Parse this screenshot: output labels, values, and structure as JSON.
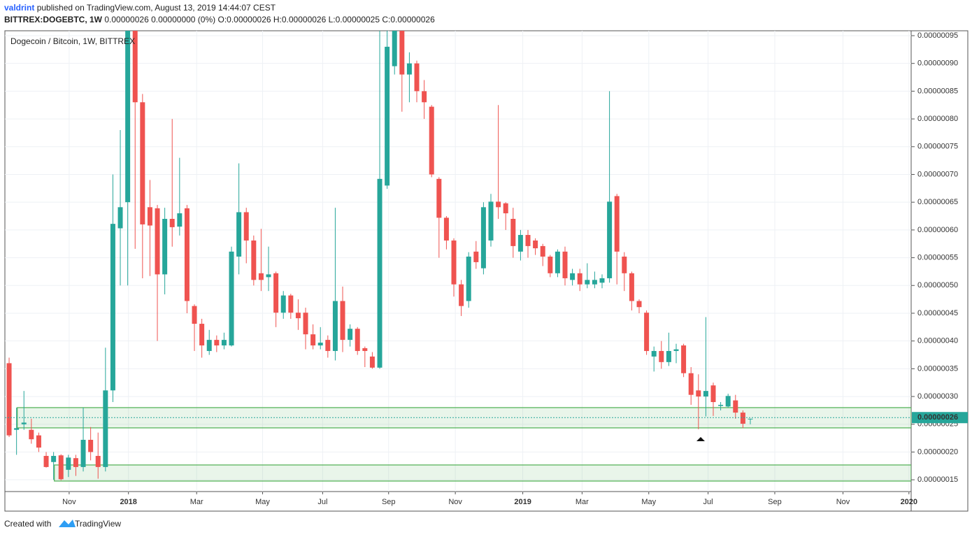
{
  "header": {
    "author": "valdrint",
    "published": "published on TradingView.com, August 13, 2019 14:44:07 CEST",
    "symbol": "BITTREX:DOGEBTC, 1W",
    "quote": "0.00000026 0.00000000 (0%) O:0.00000026 H:0.00000026 L:0.00000025 C:0.00000026"
  },
  "footer": {
    "created": "Created with",
    "brand": "TradingView"
  },
  "chart_data": {
    "type": "candlestick",
    "legend": "Dogecoin / Bitcoin, 1W, BITTREX",
    "up_color": "#26a69a",
    "down_color": "#ef5350",
    "grid": true,
    "categories": [
      null,
      null,
      null,
      null,
      null,
      null,
      null,
      null,
      null,
      null,
      null,
      null,
      null,
      null,
      null,
      null,
      null,
      null,
      null,
      null,
      null,
      null,
      null,
      null,
      null,
      null,
      null,
      null,
      null,
      null,
      null,
      null,
      null,
      null,
      null,
      null,
      null,
      null,
      null,
      null,
      null,
      null,
      null,
      null,
      null,
      null,
      null,
      null,
      null,
      null,
      null,
      null,
      null,
      null,
      null,
      null,
      null,
      null,
      null,
      null,
      null,
      null,
      null,
      null,
      null,
      null,
      null,
      null,
      null,
      null,
      null,
      null,
      null,
      null,
      null,
      null,
      null,
      null,
      null,
      null,
      null,
      null,
      null,
      null,
      null,
      null,
      null,
      null,
      null,
      null,
      null,
      null,
      null,
      null,
      null,
      null,
      null,
      null,
      null,
      null,
      null
    ],
    "open": [
      3.6e-07,
      2.4e-07,
      2.5e-07,
      2.4e-07,
      2.3e-07,
      1.93e-07,
      1.82e-07,
      1.94e-07,
      1.68e-07,
      1.89e-07,
      1.73e-07,
      2.22e-07,
      1.93e-07,
      1.73e-07,
      3.11e-07,
      6.03e-07,
      6.5e-07,
      9.7e-07,
      8.3e-07,
      6.41e-07,
      6.39e-07,
      5.2e-07,
      6.2e-07,
      6.06e-07,
      6.39e-07,
      4.63e-07,
      4.31e-07,
      3.82e-07,
      4.02e-07,
      3.92e-07,
      3.92e-07,
      5.52e-07,
      6.32e-07,
      5.81e-07,
      5.22e-07,
      5.15e-07,
      5.22e-07,
      4.51e-07,
      4.82e-07,
      4.51e-07,
      4.51e-07,
      4.12e-07,
      3.92e-07,
      4.02e-07,
      3.82e-07,
      4.72e-07,
      4.02e-07,
      4.22e-07,
      3.87e-07,
      3.72e-07,
      3.52e-07,
      6.8e-07,
      8.95e-07,
      9.7e-07,
      8.8e-07,
      9e-07,
      8.5e-07,
      8.22e-07,
      6.92e-07,
      6.22e-07,
      5.81e-07,
      5.02e-07,
      4.72e-07,
      5.61e-07,
      5.31e-07,
      5.81e-07,
      6.51e-07,
      6.48e-07,
      6.2e-07,
      5.61e-07,
      5.91e-07,
      5.81e-07,
      5.71e-07,
      5.52e-07,
      5.22e-07,
      5.61e-07,
      5.1e-07,
      5.22e-07,
      5.02e-07,
      5.02e-07,
      5.05e-07,
      5.13e-07,
      6.61e-07,
      5.52e-07,
      5.22e-07,
      4.72e-07,
      4.51e-07,
      3.72e-07,
      3.82e-07,
      3.62e-07,
      3.82e-07,
      3.92e-07,
      3.42e-07,
      3.11e-07,
      3e-07,
      3.2e-07,
      2.83e-07,
      2.82e-07,
      2.93e-07,
      2.71e-07,
      2.6e-07
    ],
    "high": [
      3.7e-07,
      2.8e-07,
      3.1e-07,
      2.6e-07,
      2.35e-07,
      2e-07,
      2e-07,
      1.96e-07,
      1.95e-07,
      1.95e-07,
      2.8e-07,
      2.45e-07,
      2.35e-07,
      3.88e-07,
      7e-07,
      7.8e-07,
      1e-06,
      1e-06,
      8.45e-07,
      6.9e-07,
      6.45e-07,
      6.4e-07,
      8e-07,
      7.3e-07,
      6.45e-07,
      4.66e-07,
      4.4e-07,
      4.2e-07,
      4.1e-07,
      4.15e-07,
      5.7e-07,
      7.2e-07,
      6.4e-07,
      5.9e-07,
      6.02e-07,
      5.7e-07,
      5.25e-07,
      4.9e-07,
      4.85e-07,
      4.75e-07,
      4.6e-07,
      4.3e-07,
      4.25e-07,
      4.1e-07,
      6.4e-07,
      4.98e-07,
      4.3e-07,
      4.25e-07,
      3.9e-07,
      3.8e-07,
      1e-06,
      1e-06,
      1e-06,
      9.75e-07,
      9.2e-07,
      9.05e-07,
      8.7e-07,
      8.25e-07,
      6.95e-07,
      6.25e-07,
      5.85e-07,
      5.1e-07,
      5.6e-07,
      5.8e-07,
      6.5e-07,
      6.65e-07,
      8.25e-07,
      6.5e-07,
      6.4e-07,
      6e-07,
      6e-07,
      5.85e-07,
      5.75e-07,
      5.55e-07,
      5.65e-07,
      5.7e-07,
      5.3e-07,
      5.3e-07,
      5.4e-07,
      5.25e-07,
      5.2e-07,
      8.5e-07,
      6.65e-07,
      5.6e-07,
      5.25e-07,
      4.75e-07,
      4.55e-07,
      3.9e-07,
      4e-07,
      4.15e-07,
      3.95e-07,
      3.95e-07,
      3.53e-07,
      3.4e-07,
      4.43e-07,
      3.25e-07,
      2.9e-07,
      3.05e-07,
      3.03e-07,
      2.75e-07,
      2.6e-07
    ],
    "low": [
      2.27e-07,
      1.95e-07,
      2.4e-07,
      2.15e-07,
      2e-07,
      1.72e-07,
      1.5e-07,
      1.49e-07,
      1.55e-07,
      1.57e-07,
      1.65e-07,
      1.85e-07,
      1.52e-07,
      1.65e-07,
      2.9e-07,
      5e-07,
      5e-07,
      5.66e-07,
      5.13e-07,
      5.17e-07,
      4e-07,
      4.84e-07,
      5.7e-07,
      5.9e-07,
      4.5e-07,
      3.82e-07,
      3.7e-07,
      3.75e-07,
      3.8e-07,
      3.85e-07,
      3.9e-07,
      5.2e-07,
      5.4e-07,
      5e-07,
      4.9e-07,
      4.9e-07,
      4.25e-07,
      4.4e-07,
      4.4e-07,
      4.2e-07,
      3.85e-07,
      3.85e-07,
      3.85e-07,
      3.7e-07,
      3.65e-07,
      3.8e-07,
      3.9e-07,
      3.75e-07,
      3.53e-07,
      3.5e-07,
      3.5e-07,
      6.74e-07,
      8.8e-07,
      8.13e-07,
      8.3e-07,
      8.3e-07,
      8e-07,
      6.95e-07,
      5.5e-07,
      5.65e-07,
      4.8e-07,
      4.45e-07,
      4.6e-07,
      5.3e-07,
      5.2e-07,
      5.7e-07,
      6.2e-07,
      6e-07,
      5.5e-07,
      5.45e-07,
      5.5e-07,
      5.55e-07,
      5.35e-07,
      5.15e-07,
      5.15e-07,
      5e-07,
      5e-07,
      4.9e-07,
      4.95e-07,
      4.95e-07,
      4.95e-07,
      5.05e-07,
      5.02e-07,
      4.9e-07,
      4.55e-07,
      4.5e-07,
      3.75e-07,
      3.45e-07,
      3.5e-07,
      3.55e-07,
      3.6e-07,
      3.35e-07,
      2.85e-07,
      2.41e-07,
      2.64e-07,
      2.65e-07,
      2.75e-07,
      2.8e-07,
      2.6e-07,
      2.43e-07,
      2.5e-07
    ],
    "close": [
      2.3e-07,
      2.43e-07,
      2.53e-07,
      2.23e-07,
      2.08e-07,
      1.73e-07,
      1.93e-07,
      1.51e-07,
      1.9e-07,
      1.73e-07,
      2.22e-07,
      2e-07,
      1.73e-07,
      3.11e-07,
      6.11e-07,
      6.41e-07,
      9.7e-07,
      8.3e-07,
      6.1e-07,
      6.08e-07,
      5.2e-07,
      6.2e-07,
      6.05e-07,
      6.3e-07,
      4.72e-07,
      4.31e-07,
      3.92e-07,
      4.02e-07,
      3.92e-07,
      4.02e-07,
      5.61e-07,
      6.32e-07,
      5.81e-07,
      5.1e-07,
      5.1e-07,
      5.2e-07,
      4.51e-07,
      4.82e-07,
      4.51e-07,
      4.41e-07,
      4.12e-07,
      3.92e-07,
      3.97e-07,
      3.82e-07,
      4.72e-07,
      4.02e-07,
      4.22e-07,
      3.82e-07,
      3.82e-07,
      3.52e-07,
      6.92e-07,
      9.3e-07,
      9.7e-07,
      8.8e-07,
      9e-07,
      8.5e-07,
      8.3e-07,
      7e-07,
      6.22e-07,
      5.81e-07,
      5.02e-07,
      4.63e-07,
      5.52e-07,
      5.42e-07,
      6.41e-07,
      6.51e-07,
      6.41e-07,
      6.3e-07,
      5.71e-07,
      5.91e-07,
      5.71e-07,
      5.67e-07,
      5.52e-07,
      5.22e-07,
      5.61e-07,
      5.13e-07,
      5.22e-07,
      5.02e-07,
      5.1e-07,
      5.1e-07,
      5.13e-07,
      6.51e-07,
      5.61e-07,
      5.22e-07,
      4.72e-07,
      4.61e-07,
      3.82e-07,
      3.82e-07,
      3.62e-07,
      3.82e-07,
      3.85e-07,
      3.42e-07,
      3.03e-07,
      3e-07,
      3.1e-07,
      2.9e-07,
      2.85e-07,
      3.01e-07,
      2.71e-07,
      2.51e-07,
      2.6e-07
    ],
    "xlim": [
      -0.57,
      121.7
    ],
    "xticks": [
      {
        "value": 8.1,
        "label": "Nov"
      },
      {
        "value": 16.1,
        "label": "2018"
      },
      {
        "value": 25.3,
        "label": "Mar"
      },
      {
        "value": 34.2,
        "label": "May"
      },
      {
        "value": 42.3,
        "label": "Jul"
      },
      {
        "value": 51.2,
        "label": "Sep"
      },
      {
        "value": 60.2,
        "label": "Nov"
      },
      {
        "value": 69.3,
        "label": "2019"
      },
      {
        "value": 77.3,
        "label": "Mar"
      },
      {
        "value": 86.3,
        "label": "May"
      },
      {
        "value": 94.3,
        "label": "Jul"
      },
      {
        "value": 103.3,
        "label": "Sep"
      },
      {
        "value": 112.5,
        "label": "Nov"
      },
      {
        "value": 121.4,
        "label": "2020"
      }
    ],
    "ylim": [
      1.288e-07,
      9.588e-07
    ],
    "yticks": [
      {
        "value": 1.5e-07,
        "label": "0.00000015"
      },
      {
        "value": 2e-07,
        "label": "0.00000020"
      },
      {
        "value": 2.5e-07,
        "label": "0.00000025"
      },
      {
        "value": 3e-07,
        "label": "0.00000030"
      },
      {
        "value": 3.5e-07,
        "label": "0.00000035"
      },
      {
        "value": 4e-07,
        "label": "0.00000040"
      },
      {
        "value": 4.5e-07,
        "label": "0.00000045"
      },
      {
        "value": 5e-07,
        "label": "0.00000050"
      },
      {
        "value": 5.5e-07,
        "label": "0.00000055"
      },
      {
        "value": 6e-07,
        "label": "0.00000060"
      },
      {
        "value": 6.5e-07,
        "label": "0.00000065"
      },
      {
        "value": 7e-07,
        "label": "0.00000070"
      },
      {
        "value": 7.5e-07,
        "label": "0.00000075"
      },
      {
        "value": 8e-07,
        "label": "0.00000080"
      },
      {
        "value": 8.5e-07,
        "label": "0.00000085"
      },
      {
        "value": 9e-07,
        "label": "0.00000090"
      },
      {
        "value": 9.5e-07,
        "label": "0.00000095"
      }
    ],
    "zones": [
      {
        "from": 1.1,
        "top": 2.8e-07,
        "bottom": 2.435e-07
      },
      {
        "from": 6.1,
        "top": 1.767e-07,
        "bottom": 1.477e-07
      }
    ],
    "zone_color": "#4caf50",
    "last_price": {
      "value": 2.62e-07,
      "label": "0.00000026"
    }
  }
}
